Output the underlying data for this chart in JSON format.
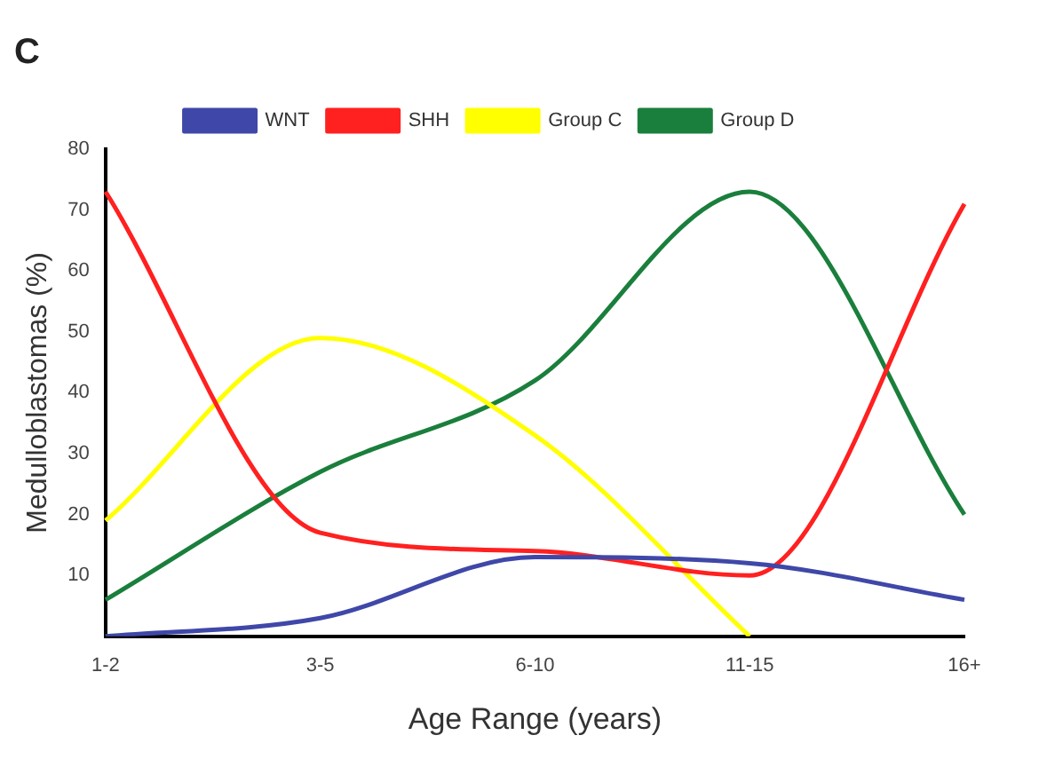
{
  "chart_data": {
    "type": "line",
    "title": "C",
    "xlabel": "Age Range (years)",
    "ylabel": "Medulloblastomas (%)",
    "categories": [
      "1-2",
      "3-5",
      "6-10",
      "11-15",
      "16+"
    ],
    "series": [
      {
        "name": "WNT",
        "color": "#3f48a8",
        "values": [
          0,
          3,
          13,
          12,
          6
        ]
      },
      {
        "name": "SHH",
        "color": "#ff2020",
        "values": [
          73,
          17,
          14,
          10,
          71
        ]
      },
      {
        "name": "Group C",
        "color": "#ffff00",
        "values": [
          19,
          49,
          33,
          0,
          null
        ]
      },
      {
        "name": "Group D",
        "color": "#1a7f3c",
        "values": [
          6,
          27,
          42,
          73,
          20
        ]
      }
    ],
    "ylim": [
      0,
      80
    ],
    "yticks": [
      10,
      20,
      30,
      40,
      50,
      60,
      70,
      80
    ],
    "grid": false,
    "legend": "top left",
    "marker": "none",
    "line_style": "solid"
  }
}
